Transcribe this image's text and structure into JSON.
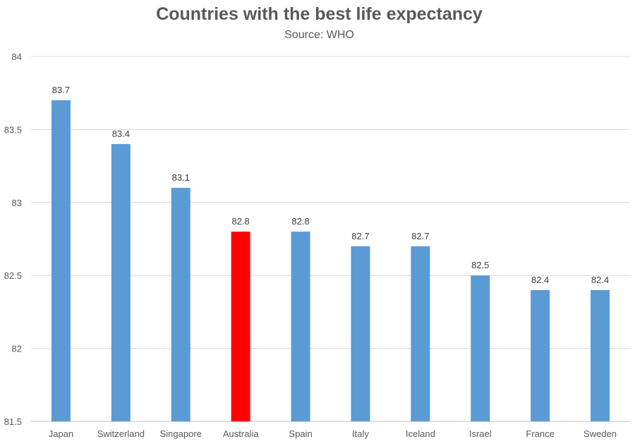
{
  "chart_data": {
    "type": "bar",
    "title": "Countries with the best life expectancy",
    "subtitle": "Source: WHO",
    "xlabel": "",
    "ylabel": "",
    "categories": [
      "Japan",
      "Switzerland",
      "Singapore",
      "Australia",
      "Spain",
      "Italy",
      "Iceland",
      "Israel",
      "France",
      "Sweden"
    ],
    "values": [
      83.7,
      83.4,
      83.1,
      82.8,
      82.8,
      82.7,
      82.7,
      82.5,
      82.4,
      82.4
    ],
    "value_labels": [
      "83.7",
      "83.4",
      "83.1",
      "82.8",
      "82.8",
      "82.7",
      "82.7",
      "82.5",
      "82.4",
      "82.4"
    ],
    "yticks": [
      "81.5",
      "82",
      "82.5",
      "83",
      "83.5",
      "84"
    ],
    "ylim": [
      81.5,
      84
    ],
    "grid": true,
    "legend": "none",
    "bar_color": "#5B9BD5",
    "highlight_color": "#FF0000",
    "highlight_category": "Australia"
  }
}
